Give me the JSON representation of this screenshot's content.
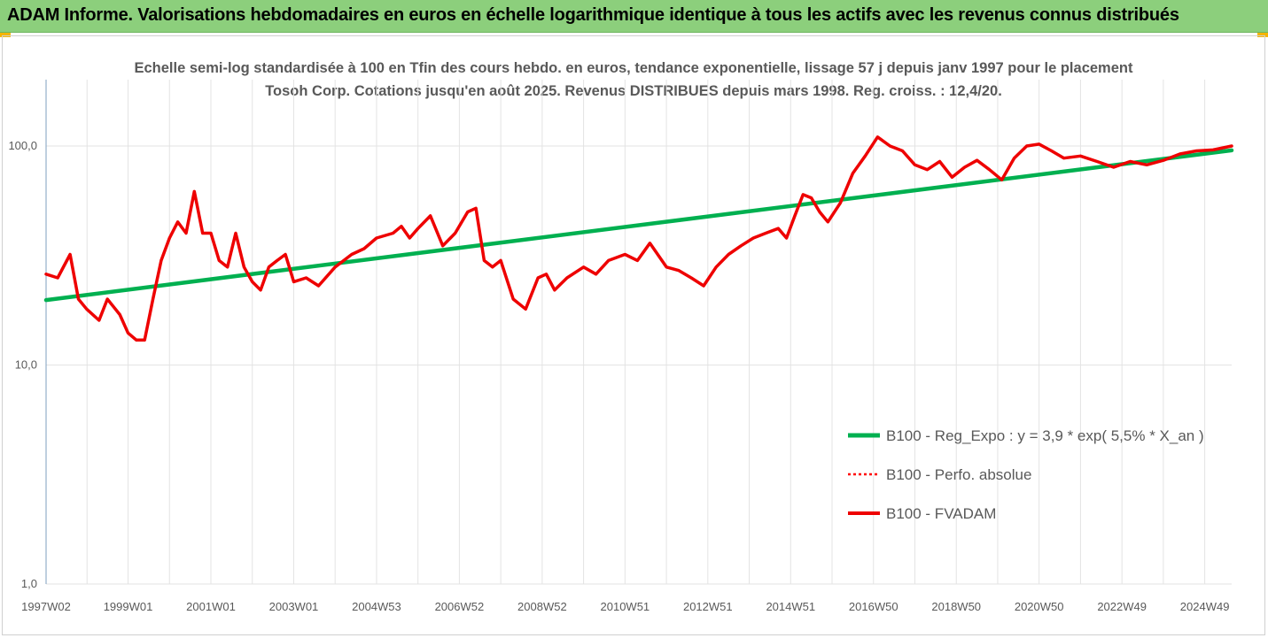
{
  "banner": {
    "title": "ADAM Informe. Valorisations hebdomadaires en euros en échelle logarithmique identique à tous les actifs avec les revenus connus distribués"
  },
  "colors": {
    "banner_bg": "#8ccf7c",
    "regression": "#00b050",
    "perf_absolue": "#ff0000",
    "fvadam": "#ee0000",
    "grid": "#e3e3e3",
    "axis": "#7f9fbf"
  },
  "chart_data": {
    "type": "line",
    "title": "Echelle semi-log standardisée à 100 en Tfin des cours hebdo. en euros, tendance exponentielle, lissage 57 j depuis janv 1997 pour le placement Tosoh Corp. Cotations jusqu'en août 2025. Revenus DISTRIBUES depuis mars 1998. Reg. croiss. : 12,4/20.",
    "y_scale": "log",
    "ylim": [
      1,
      200
    ],
    "xlim": [
      1997.02,
      2025.65
    ],
    "y_ticks": [
      {
        "value": 100,
        "label": "100,0"
      },
      {
        "value": 10,
        "label": "10,0"
      },
      {
        "value": 1,
        "label": "1,0"
      }
    ],
    "x_ticks": [
      {
        "value": 1997.02,
        "label": "1997W02"
      },
      {
        "value": 1999.0,
        "label": "1999W01"
      },
      {
        "value": 2001.0,
        "label": "2001W01"
      },
      {
        "value": 2003.0,
        "label": "2003W01"
      },
      {
        "value": 2005.0,
        "label": "2004W53"
      },
      {
        "value": 2007.0,
        "label": "2006W52"
      },
      {
        "value": 2009.0,
        "label": "2008W52"
      },
      {
        "value": 2011.0,
        "label": "2010W51"
      },
      {
        "value": 2013.0,
        "label": "2012W51"
      },
      {
        "value": 2015.0,
        "label": "2014W51"
      },
      {
        "value": 2017.0,
        "label": "2016W50"
      },
      {
        "value": 2019.0,
        "label": "2018W50"
      },
      {
        "value": 2021.0,
        "label": "2020W50"
      },
      {
        "value": 2023.0,
        "label": "2022W49"
      },
      {
        "value": 2025.0,
        "label": "2024W49"
      }
    ],
    "legend_position": "right",
    "series": [
      {
        "name": "B100 - Reg_Expo : y = 3,9 * exp( 5,5% *  X_an )",
        "style": "solid",
        "x": [
          1997.02,
          2025.65
        ],
        "y": [
          19.8,
          95.5
        ]
      },
      {
        "name": "B100 - Perfo. absolue",
        "style": "dotted",
        "x": [
          1997.02,
          1997.3,
          1997.6,
          1997.8,
          1998.0,
          1998.3,
          1998.5,
          1998.8,
          1999.0,
          1999.2,
          1999.4,
          1999.6,
          1999.8,
          2000.0,
          2000.2,
          2000.4,
          2000.6,
          2000.8,
          2001.0,
          2001.2,
          2001.4,
          2001.6,
          2001.8,
          2002.0,
          2002.2,
          2002.4,
          2002.6,
          2002.8,
          2003.0,
          2003.3,
          2003.6,
          2004.0,
          2004.4,
          2004.7,
          2005.0,
          2005.4,
          2005.6,
          2005.8,
          2006.0,
          2006.3,
          2006.6,
          2006.9,
          2007.2,
          2007.4,
          2007.6,
          2007.8,
          2008.0,
          2008.3,
          2008.6,
          2008.9,
          2009.1,
          2009.3,
          2009.6,
          2010.0,
          2010.3,
          2010.6,
          2011.0,
          2011.3,
          2011.6,
          2012.0,
          2012.3,
          2012.6,
          2012.9,
          2013.2,
          2013.5,
          2013.8,
          2014.1,
          2014.4,
          2014.7,
          2014.9,
          2015.1,
          2015.3,
          2015.5,
          2015.7,
          2015.9,
          2016.2,
          2016.5,
          2016.8,
          2017.1,
          2017.4,
          2017.7,
          2018.0,
          2018.3,
          2018.6,
          2018.9,
          2019.2,
          2019.5,
          2019.8,
          2020.1,
          2020.4,
          2020.7,
          2021.0,
          2021.3,
          2021.6,
          2022.0,
          2022.4,
          2022.8,
          2023.2,
          2023.6,
          2024.0,
          2024.4,
          2024.8,
          2025.2,
          2025.65
        ],
        "y": [
          26,
          25,
          32,
          20,
          18,
          16,
          20,
          17,
          14,
          13,
          13,
          20,
          30,
          38,
          45,
          40,
          62,
          40,
          40,
          30,
          28,
          40,
          28,
          24,
          22,
          28,
          30,
          32,
          24,
          25,
          23,
          28,
          32,
          34,
          38,
          40,
          43,
          38,
          42,
          48,
          35,
          40,
          50,
          52,
          30,
          28,
          30,
          20,
          18,
          25,
          26,
          22,
          25,
          28,
          26,
          30,
          32,
          30,
          36,
          28,
          27,
          25,
          23,
          28,
          32,
          35,
          38,
          40,
          42,
          38,
          48,
          60,
          58,
          50,
          45,
          55,
          75,
          90,
          110,
          100,
          95,
          82,
          78,
          85,
          72,
          80,
          86,
          78,
          70,
          88,
          100,
          102,
          95,
          88,
          90,
          85,
          80,
          85,
          82,
          86,
          92,
          95,
          96,
          100
        ]
      },
      {
        "name": "B100 - FVADAM",
        "style": "solid",
        "x": [
          1997.02,
          1997.3,
          1997.6,
          1997.8,
          1998.0,
          1998.3,
          1998.5,
          1998.8,
          1999.0,
          1999.2,
          1999.4,
          1999.6,
          1999.8,
          2000.0,
          2000.2,
          2000.4,
          2000.6,
          2000.8,
          2001.0,
          2001.2,
          2001.4,
          2001.6,
          2001.8,
          2002.0,
          2002.2,
          2002.4,
          2002.6,
          2002.8,
          2003.0,
          2003.3,
          2003.6,
          2004.0,
          2004.4,
          2004.7,
          2005.0,
          2005.4,
          2005.6,
          2005.8,
          2006.0,
          2006.3,
          2006.6,
          2006.9,
          2007.2,
          2007.4,
          2007.6,
          2007.8,
          2008.0,
          2008.3,
          2008.6,
          2008.9,
          2009.1,
          2009.3,
          2009.6,
          2010.0,
          2010.3,
          2010.6,
          2011.0,
          2011.3,
          2011.6,
          2012.0,
          2012.3,
          2012.6,
          2012.9,
          2013.2,
          2013.5,
          2013.8,
          2014.1,
          2014.4,
          2014.7,
          2014.9,
          2015.1,
          2015.3,
          2015.5,
          2015.7,
          2015.9,
          2016.2,
          2016.5,
          2016.8,
          2017.1,
          2017.4,
          2017.7,
          2018.0,
          2018.3,
          2018.6,
          2018.9,
          2019.2,
          2019.5,
          2019.8,
          2020.1,
          2020.4,
          2020.7,
          2021.0,
          2021.3,
          2021.6,
          2022.0,
          2022.4,
          2022.8,
          2023.2,
          2023.6,
          2024.0,
          2024.4,
          2024.8,
          2025.2,
          2025.65
        ],
        "y": [
          26,
          25,
          32,
          20,
          18,
          16,
          20,
          17,
          14,
          13,
          13,
          20,
          30,
          38,
          45,
          40,
          62,
          40,
          40,
          30,
          28,
          40,
          28,
          24,
          22,
          28,
          30,
          32,
          24,
          25,
          23,
          28,
          32,
          34,
          38,
          40,
          43,
          38,
          42,
          48,
          35,
          40,
          50,
          52,
          30,
          28,
          30,
          20,
          18,
          25,
          26,
          22,
          25,
          28,
          26,
          30,
          32,
          30,
          36,
          28,
          27,
          25,
          23,
          28,
          32,
          35,
          38,
          40,
          42,
          38,
          48,
          60,
          58,
          50,
          45,
          55,
          75,
          90,
          110,
          100,
          95,
          82,
          78,
          85,
          72,
          80,
          86,
          78,
          70,
          88,
          100,
          102,
          95,
          88,
          90,
          85,
          80,
          85,
          82,
          86,
          92,
          95,
          96,
          100
        ]
      }
    ]
  }
}
